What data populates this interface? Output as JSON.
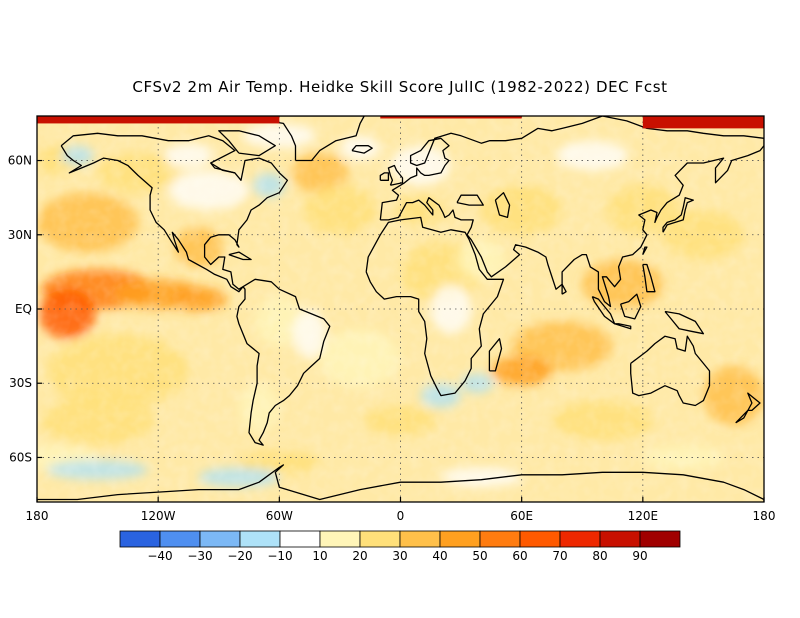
{
  "title": "CFSv2 2m Air Temp. Heidke Skill Score JulIC (1982-2022) DEC Fcst",
  "map": {
    "lon_range": [
      -180,
      180
    ],
    "lat_range": [
      -78,
      78
    ],
    "gridlines": "dotted",
    "lat_ticks": [
      {
        "value": 60,
        "label": "60N"
      },
      {
        "value": 30,
        "label": "30N"
      },
      {
        "value": 0,
        "label": "EQ"
      },
      {
        "value": -30,
        "label": "30S"
      },
      {
        "value": -60,
        "label": "60S"
      }
    ],
    "lon_ticks": [
      {
        "value": -180,
        "label": "180"
      },
      {
        "value": -120,
        "label": "120W"
      },
      {
        "value": -60,
        "label": "60W"
      },
      {
        "value": 0,
        "label": "0"
      },
      {
        "value": 60,
        "label": "60E"
      },
      {
        "value": 120,
        "label": "120E"
      },
      {
        "value": 180,
        "label": "180"
      }
    ]
  },
  "colorbar": {
    "colors": [
      "#2a63e0",
      "#4f8ff0",
      "#7cb8f5",
      "#aee2f8",
      "#ffffff",
      "#fff5b8",
      "#ffe07a",
      "#ffc04a",
      "#ffa020",
      "#ff7c10",
      "#ff5a00",
      "#ee2800",
      "#c81000",
      "#a00000"
    ],
    "labels": [
      "-40",
      "-30",
      "-20",
      "-10",
      "10",
      "20",
      "30",
      "40",
      "50",
      "60",
      "70",
      "80",
      "90"
    ]
  },
  "chart_data": {
    "type": "heatmap",
    "title": "CFSv2 2m Air Temp. Heidke Skill Score JulIC (1982-2022) DEC Fcst",
    "variable": "Heidke Skill Score",
    "levels": [
      -40,
      -30,
      -20,
      -10,
      10,
      20,
      30,
      40,
      50,
      60,
      70,
      80,
      90
    ],
    "notable_regions": [
      {
        "region": "Arctic (above ~75N)",
        "score_range": [
          80,
          100
        ]
      },
      {
        "region": "Eastern equatorial Pacific",
        "score_range": [
          50,
          70
        ]
      },
      {
        "region": "Southern Indian Ocean",
        "score_range": [
          30,
          50
        ]
      },
      {
        "region": "North Atlantic near 50N",
        "score_range": [
          30,
          50
        ]
      },
      {
        "region": "South Atlantic off southern Africa",
        "score_range": [
          -20,
          -10
        ]
      }
    ]
  }
}
